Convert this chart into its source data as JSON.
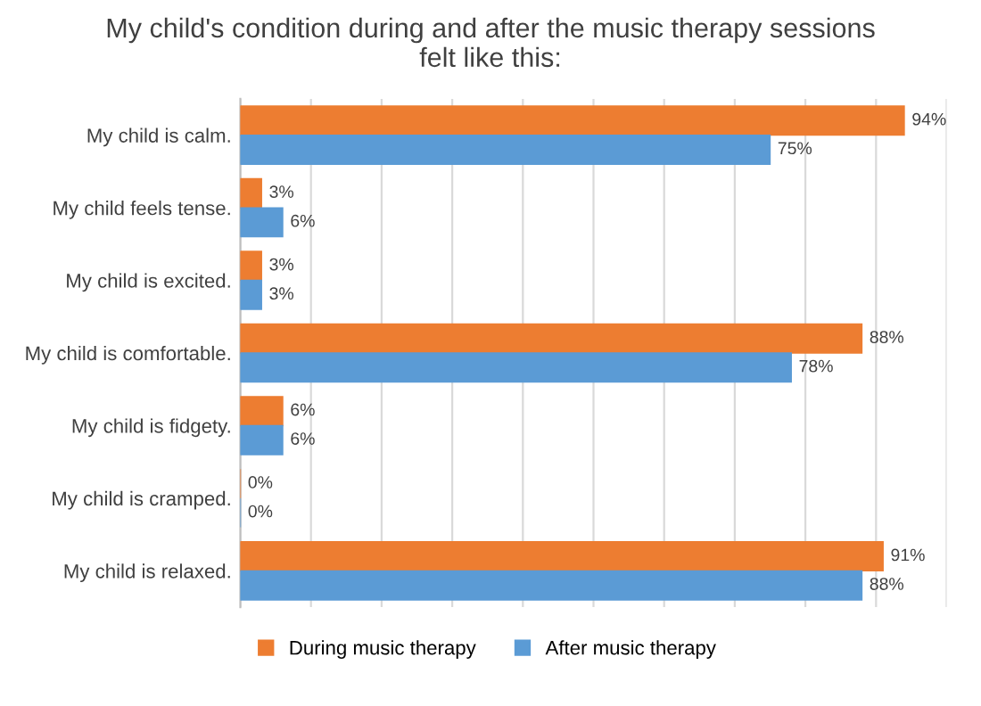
{
  "chart_data": {
    "type": "bar",
    "orientation": "horizontal",
    "title": "My child's condition during and after the music therapy sessions\nfelt like this:",
    "categories": [
      "My child is calm.",
      "My child feels tense.",
      "My child is excited.",
      "My child is comfortable.",
      "My child is fidgety.",
      "My child is cramped.",
      "My child is relaxed."
    ],
    "series": [
      {
        "name": "During music therapy",
        "color": "#ed7d31",
        "values": [
          94,
          3,
          3,
          88,
          6,
          0,
          91
        ],
        "value_labels": [
          "94%",
          "3%",
          "3%",
          "88%",
          "6%",
          "0%",
          "91%"
        ]
      },
      {
        "name": "After music therapy",
        "color": "#5b9bd5",
        "values": [
          75,
          6,
          3,
          78,
          6,
          0,
          88
        ],
        "value_labels": [
          "75%",
          "6%",
          "3%",
          "78%",
          "6%",
          "0%",
          "88%"
        ]
      }
    ],
    "xlim": [
      0,
      100
    ],
    "xticks": [
      {
        "value": 0,
        "label": null
      },
      {
        "value": 10,
        "label": null
      },
      {
        "value": 20,
        "label": null
      },
      {
        "value": 30,
        "label": null
      },
      {
        "value": 40,
        "label": null
      },
      {
        "value": 50,
        "label": null
      },
      {
        "value": 60,
        "label": null
      },
      {
        "value": 70,
        "label": null
      },
      {
        "value": 80,
        "label": null
      },
      {
        "value": 90,
        "label": null
      },
      {
        "value": 100,
        "label": null
      }
    ],
    "tick_labels": "y",
    "grid": "x",
    "legend": "bottom"
  }
}
